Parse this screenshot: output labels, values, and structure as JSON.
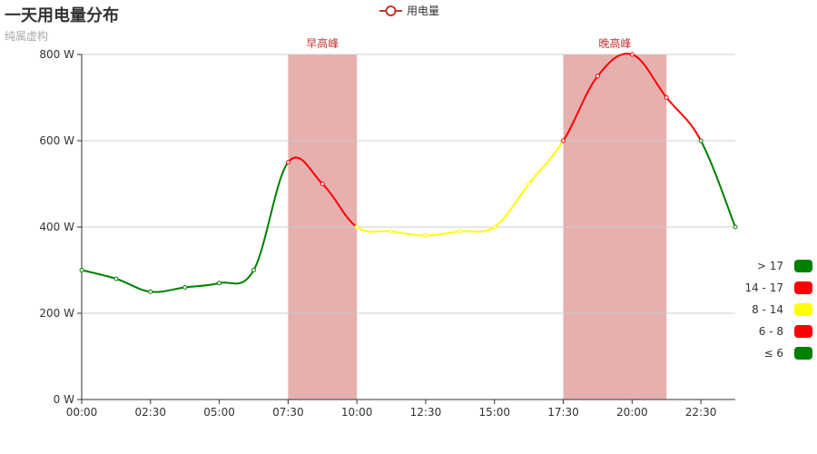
{
  "chart_data": {
    "type": "line",
    "title": "一天用电量分布",
    "subtitle": "纯属虚构",
    "x": [
      "00:00",
      "01:15",
      "02:30",
      "03:45",
      "05:00",
      "06:15",
      "07:30",
      "08:45",
      "10:00",
      "11:15",
      "12:30",
      "13:45",
      "15:00",
      "16:15",
      "17:30",
      "18:45",
      "20:00",
      "21:15",
      "22:30",
      "23:45"
    ],
    "xticks": [
      "00:00",
      "02:30",
      "05:00",
      "07:30",
      "10:00",
      "12:30",
      "15:00",
      "17:30",
      "20:00",
      "22:30"
    ],
    "series": [
      {
        "name": "用电量",
        "values": [
          300,
          280,
          250,
          260,
          270,
          300,
          550,
          500,
          400,
          390,
          380,
          390,
          400,
          500,
          600,
          750,
          800,
          700,
          600,
          400
        ]
      }
    ],
    "ylim": [
      0,
      800
    ],
    "yticks": [
      0,
      200,
      400,
      600,
      800
    ],
    "y_unit": "W",
    "grid": true,
    "mark_areas": [
      {
        "label": "早高峰",
        "from": "07:30",
        "to": "10:00"
      },
      {
        "label": "晚高峰",
        "from": "17:30",
        "to": "21:15"
      }
    ],
    "visual_map": {
      "dimension": "x-index",
      "pieces": [
        {
          "label": "> 17",
          "gt": 17,
          "color": "#008000"
        },
        {
          "label": "14 - 17",
          "gte": 14,
          "lte": 17,
          "color": "#ff0000"
        },
        {
          "label": "8 - 14",
          "gte": 8,
          "lt": 14,
          "color": "#ffff00"
        },
        {
          "label": "6 - 8",
          "gte": 6,
          "lt": 8,
          "color": "#ff0000"
        },
        {
          "label": "≤ 6",
          "lte": 6,
          "color": "#008000"
        }
      ]
    },
    "colors": {
      "legend": "#c23531",
      "mark_area": "#e6b0af",
      "mark_label": "#c23531",
      "axis": "#333333",
      "grid": "#cccccc"
    }
  }
}
